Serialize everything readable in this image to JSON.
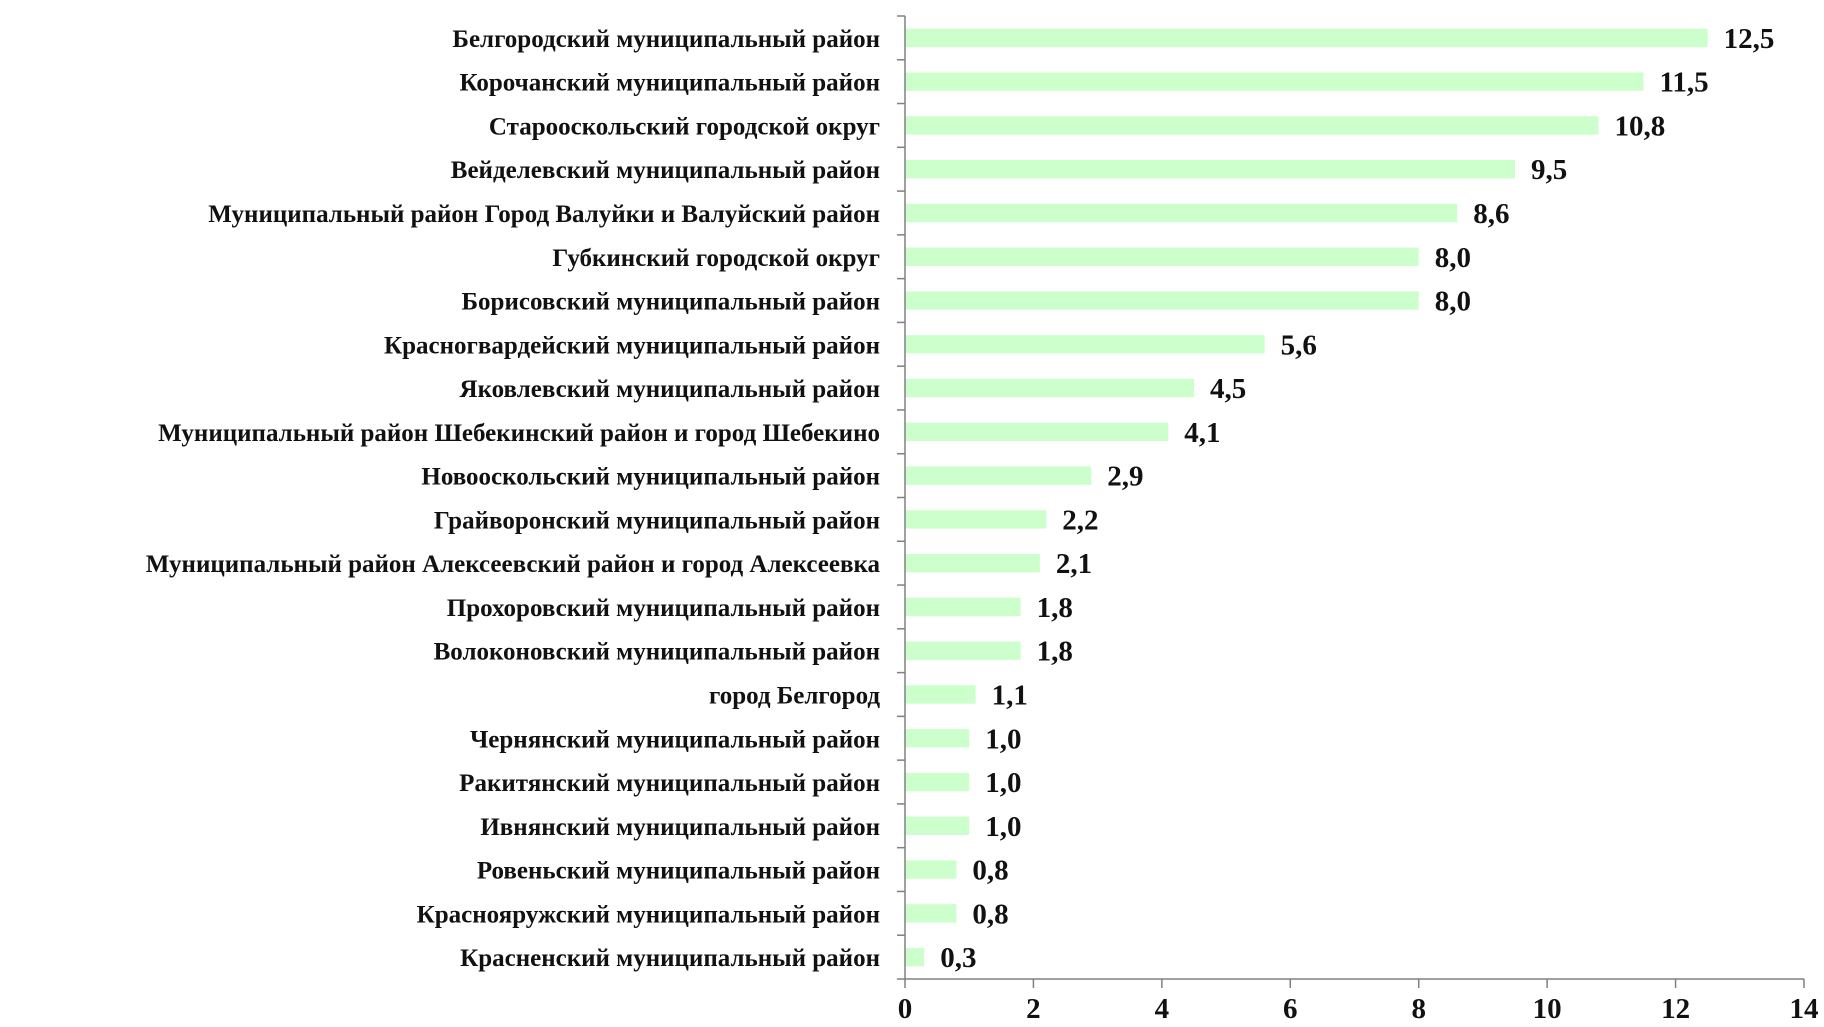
{
  "chart_data": {
    "type": "bar",
    "orientation": "horizontal",
    "title": "",
    "xlabel": "",
    "ylabel": "",
    "xlim": [
      0,
      14
    ],
    "x_ticks": [
      0,
      2,
      4,
      6,
      8,
      10,
      12,
      14
    ],
    "grid": false,
    "legend": "none",
    "bar_color": "#ccffcc",
    "categories": [
      "Белгородский муниципальный район",
      "Корочанский муниципальный район",
      "Старооскольский городской округ",
      "Вейделевский муниципальный район",
      "Муниципальный район Город Валуйки и Валуйский район",
      "Губкинский городской округ",
      "Борисовский муниципальный район",
      "Красногвардейский муниципальный район",
      "Яковлевский муниципальный район",
      "Муниципальный район Шебекинский район и город Шебекино",
      "Новооскольский муниципальный район",
      "Грайворонский муниципальный район",
      "Муниципальный район Алексеевский район и город Алексеевка",
      "Прохоровский муниципальный район",
      "Волоконовский муниципальный район",
      "город Белгород",
      "Чернянский муниципальный район",
      "Ракитянский муниципальный район",
      "Ивнянский муниципальный район",
      "Ровеньский муниципальный район",
      "Краснояружский муниципальный район",
      "Красненский муниципальный район"
    ],
    "values": [
      12.5,
      11.5,
      10.8,
      9.5,
      8.6,
      8.0,
      8.0,
      5.6,
      4.5,
      4.1,
      2.9,
      2.2,
      2.1,
      1.8,
      1.8,
      1.1,
      1.0,
      1.0,
      1.0,
      0.8,
      0.8,
      0.3
    ],
    "value_labels": [
      "12,5",
      "11,5",
      "10,8",
      "9,5",
      "8,6",
      "8,0",
      "8,0",
      "5,6",
      "4,5",
      "4,1",
      "2,9",
      "2,2",
      "2,1",
      "1,8",
      "1,8",
      "1,1",
      "1,0",
      "1,0",
      "1,0",
      "0,8",
      "0,8",
      "0,3"
    ]
  }
}
